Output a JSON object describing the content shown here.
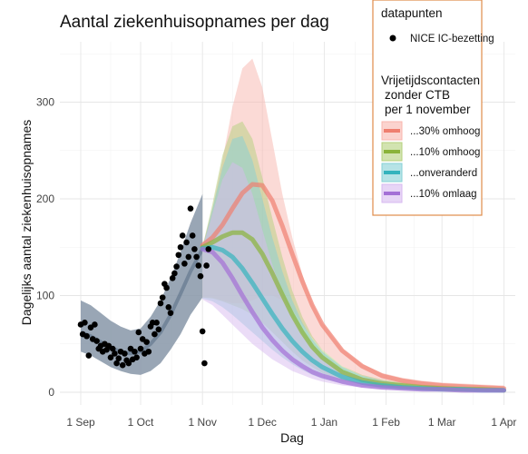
{
  "chart_data": {
    "type": "area",
    "title": "Aantal ziekenhuisopnames per dag",
    "xlabel": "Dag",
    "ylabel": "Dagelijks aantal ziekenhuisopnames",
    "x_ticks": [
      {
        "label": "1 Sep",
        "day": 0
      },
      {
        "label": "1 Oct",
        "day": 30
      },
      {
        "label": "1 Nov",
        "day": 61
      },
      {
        "label": "1 Dec",
        "day": 91
      },
      {
        "label": "1 Jan",
        "day": 122
      },
      {
        "label": "1 Feb",
        "day": 153
      },
      {
        "label": "1 Mar",
        "day": 181
      },
      {
        "label": "1 Apr",
        "day": 212
      }
    ],
    "ylim": [
      0,
      355
    ],
    "y_ticks": [
      0,
      100,
      200,
      300
    ],
    "grid": true,
    "legend": {
      "position": "top-right",
      "points_title": "datapunten",
      "points_label": "NICE IC-bezetting",
      "scenario_title_line1": "Vrijetijdscontacten",
      "scenario_title_line2": "zonder CTB",
      "scenario_title_line3": "per 1 november"
    },
    "series": [
      {
        "name": "...30% omhoog",
        "color": "#ef7f6f",
        "band_color": "#f8b5ad",
        "x": [
          61,
          66,
          71,
          76,
          81,
          86,
          91,
          96,
          101,
          106,
          111,
          116,
          121,
          131,
          141,
          151,
          161,
          171,
          181,
          191,
          201,
          212
        ],
        "mean": [
          152,
          160,
          173,
          190,
          206,
          215,
          214,
          198,
          172,
          143,
          115,
          90,
          70,
          43,
          27,
          17,
          12,
          9,
          7,
          6,
          5,
          4
        ],
        "lower": [
          98,
          98,
          95,
          92,
          92,
          95,
          100,
          100,
          95,
          85,
          70,
          56,
          44,
          27,
          17,
          11,
          8,
          6,
          5,
          4,
          3,
          3
        ],
        "upper": [
          152,
          190,
          240,
          295,
          335,
          345,
          315,
          260,
          205,
          160,
          122,
          93,
          72,
          45,
          29,
          20,
          15,
          12,
          10,
          9,
          8,
          7
        ]
      },
      {
        "name": "...10% omhoog",
        "color": "#8ab33a",
        "band_color": "#b4d07c",
        "x": [
          61,
          66,
          71,
          76,
          81,
          86,
          91,
          96,
          101,
          106,
          111,
          116,
          121,
          131,
          141,
          151,
          161,
          171,
          181,
          191,
          201,
          212
        ],
        "mean": [
          150,
          155,
          161,
          165,
          165,
          158,
          143,
          123,
          101,
          80,
          62,
          47,
          36,
          21,
          13,
          9,
          7,
          5,
          4,
          3,
          3,
          2
        ],
        "lower": [
          98,
          97,
          94,
          90,
          86,
          80,
          72,
          62,
          52,
          42,
          33,
          26,
          20,
          12,
          8,
          5,
          4,
          3,
          2,
          2,
          2,
          1
        ],
        "upper": [
          150,
          195,
          245,
          275,
          280,
          262,
          222,
          180,
          140,
          105,
          78,
          58,
          44,
          27,
          18,
          13,
          10,
          8,
          7,
          6,
          5,
          5
        ]
      },
      {
        "name": "...onveranderd",
        "color": "#34b3bd",
        "band_color": "#86d0d6",
        "x": [
          61,
          66,
          71,
          76,
          81,
          86,
          91,
          96,
          101,
          106,
          111,
          116,
          121,
          131,
          141,
          151,
          161,
          171,
          181,
          191,
          201,
          212
        ],
        "mean": [
          149,
          150,
          147,
          140,
          128,
          113,
          97,
          81,
          66,
          53,
          42,
          33,
          26,
          16,
          10,
          7,
          5,
          4,
          3,
          3,
          2,
          2
        ],
        "lower": [
          97,
          94,
          88,
          80,
          71,
          62,
          53,
          44,
          36,
          29,
          23,
          18,
          14,
          9,
          6,
          4,
          3,
          2,
          2,
          2,
          1,
          1
        ],
        "upper": [
          149,
          190,
          232,
          262,
          265,
          240,
          200,
          160,
          125,
          95,
          72,
          55,
          42,
          26,
          17,
          12,
          9,
          7,
          6,
          5,
          5,
          4
        ]
      },
      {
        "name": "...10% omlaag",
        "color": "#a46fd6",
        "band_color": "#d7b9f0",
        "x": [
          61,
          66,
          71,
          76,
          81,
          86,
          91,
          96,
          101,
          106,
          111,
          116,
          121,
          131,
          141,
          151,
          161,
          171,
          181,
          191,
          201,
          212
        ],
        "mean": [
          148,
          145,
          134,
          118,
          100,
          83,
          67,
          54,
          43,
          34,
          27,
          21,
          17,
          11,
          7,
          5,
          4,
          3,
          3,
          2,
          2,
          2
        ],
        "lower": [
          96,
          90,
          80,
          70,
          60,
          50,
          42,
          34,
          28,
          22,
          18,
          14,
          11,
          7,
          5,
          3,
          3,
          2,
          2,
          1,
          1,
          1
        ],
        "upper": [
          148,
          185,
          220,
          238,
          232,
          205,
          168,
          132,
          102,
          78,
          60,
          46,
          36,
          22,
          15,
          11,
          8,
          7,
          6,
          5,
          5,
          4
        ]
      }
    ],
    "historic_fit": {
      "color": "#46607a",
      "band_color": "#8796a8",
      "x": [
        0,
        5,
        10,
        15,
        20,
        25,
        30,
        35,
        40,
        45,
        50,
        55,
        61
      ],
      "mean": [
        62,
        58,
        52,
        46,
        42,
        40,
        42,
        50,
        62,
        80,
        102,
        125,
        148
      ],
      "lower": [
        42,
        38,
        32,
        26,
        22,
        19,
        18,
        22,
        30,
        44,
        60,
        80,
        98
      ],
      "upper": [
        95,
        90,
        82,
        74,
        68,
        64,
        66,
        78,
        95,
        118,
        145,
        175,
        205
      ]
    },
    "points": {
      "name": "NICE IC-bezetting",
      "color": "#000000",
      "x": [
        0,
        1,
        2,
        3,
        4,
        5,
        6,
        7,
        8,
        9,
        10,
        11,
        12,
        13,
        14,
        15,
        16,
        17,
        18,
        19,
        20,
        21,
        22,
        23,
        24,
        25,
        26,
        27,
        28,
        29,
        30,
        31,
        32,
        33,
        34,
        35,
        36,
        37,
        38,
        39,
        40,
        41,
        42,
        43,
        44,
        45,
        46,
        47,
        48,
        49,
        50,
        51,
        52,
        53,
        54,
        55,
        56,
        57,
        58,
        59,
        60,
        61,
        62,
        63,
        64
      ],
      "y": [
        70,
        60,
        72,
        58,
        38,
        67,
        55,
        70,
        53,
        45,
        48,
        42,
        50,
        44,
        48,
        36,
        45,
        40,
        30,
        35,
        42,
        28,
        40,
        33,
        30,
        45,
        34,
        42,
        36,
        62,
        45,
        55,
        40,
        52,
        42,
        68,
        72,
        60,
        72,
        65,
        92,
        98,
        112,
        108,
        88,
        82,
        118,
        123,
        130,
        142,
        150,
        162,
        133,
        155,
        140,
        190,
        162,
        148,
        140,
        131,
        120,
        63,
        30,
        131,
        148
      ]
    }
  }
}
